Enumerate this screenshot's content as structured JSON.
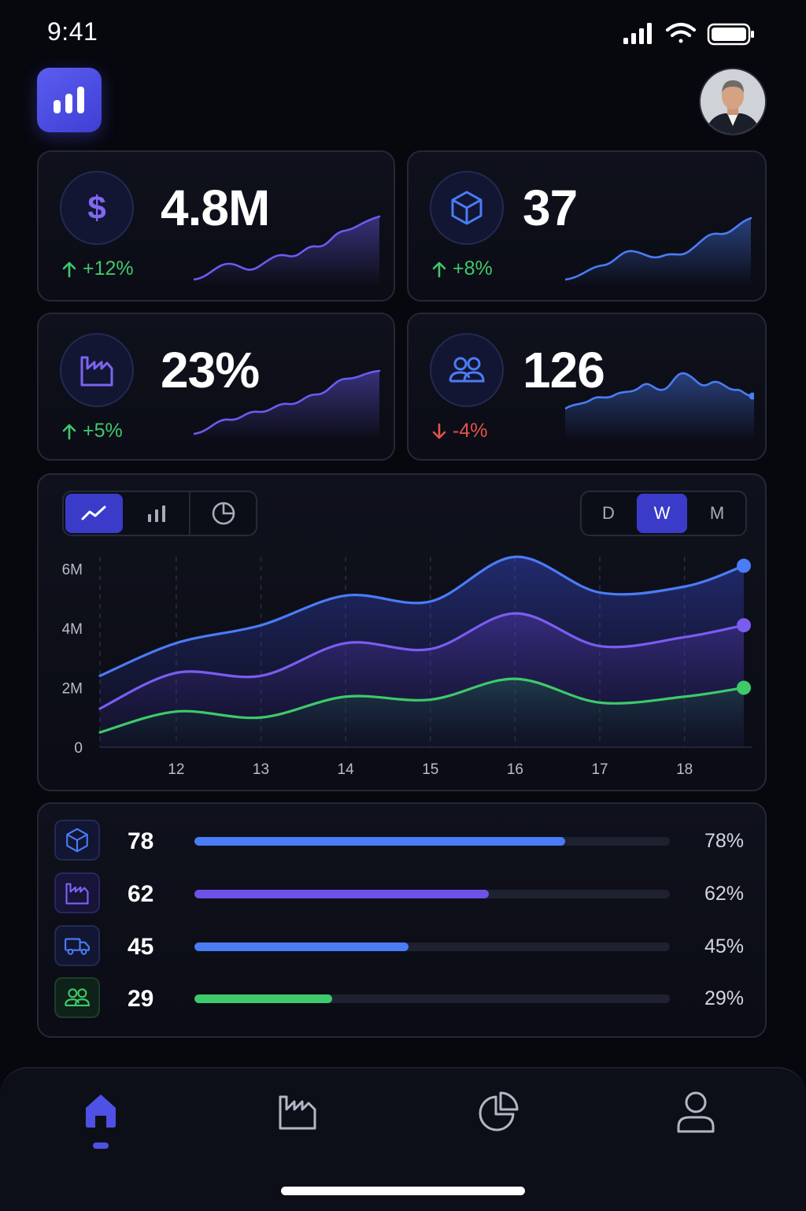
{
  "status_bar": {
    "time": "9:41"
  },
  "kpis": [
    {
      "icon": "dollar-icon",
      "value": "4.8M",
      "delta": "+12%",
      "trend": "up"
    },
    {
      "icon": "box-icon",
      "value": "37",
      "delta": "+8%",
      "trend": "up"
    },
    {
      "icon": "factory-icon",
      "value": "23%",
      "delta": "+5%",
      "trend": "up"
    },
    {
      "icon": "users-icon",
      "value": "126",
      "delta": "-4%",
      "trend": "down"
    }
  ],
  "chart_controls": {
    "chart_types": [
      "line-chart-icon",
      "bar-chart-icon",
      "pie-chart-icon"
    ],
    "active_chart_type": "line-chart-icon",
    "periods": [
      "D",
      "W",
      "M"
    ],
    "active_period": "W"
  },
  "chart_data": {
    "type": "area",
    "x": [
      11.1,
      12,
      13,
      14,
      15,
      16,
      17,
      18,
      18.7
    ],
    "x_ticks": [
      "12",
      "13",
      "14",
      "15",
      "16",
      "17",
      "18"
    ],
    "y_ticks": [
      "0",
      "2M",
      "4M",
      "6M"
    ],
    "ylim": [
      0,
      6.3
    ],
    "grid": "vertical dashed",
    "series": [
      {
        "color": "#4a7cf5",
        "values": [
          2.4,
          3.5,
          4.1,
          5.1,
          4.9,
          6.4,
          5.2,
          5.4,
          6.1
        ]
      },
      {
        "color": "#7b5cf0",
        "values": [
          1.3,
          2.5,
          2.4,
          3.5,
          3.3,
          4.5,
          3.4,
          3.7,
          4.1
        ]
      },
      {
        "color": "#3ec96b",
        "values": [
          0.5,
          1.2,
          1.0,
          1.7,
          1.6,
          2.3,
          1.5,
          1.7,
          2.0
        ]
      }
    ]
  },
  "progress": [
    {
      "icon": "box-icon",
      "count": "78",
      "percent_label": "78%",
      "value": 0.78,
      "color": "#4a7cf5"
    },
    {
      "icon": "factory-icon",
      "count": "62",
      "percent_label": "62%",
      "value": 0.62,
      "color": "#6e52e8"
    },
    {
      "icon": "truck-icon",
      "count": "45",
      "percent_label": "45%",
      "value": 0.45,
      "color": "#4a7cf5"
    },
    {
      "icon": "users-icon",
      "count": "29",
      "percent_label": "29%",
      "value": 0.29,
      "color": "#3ec96b"
    }
  ],
  "tab_bar": {
    "items": [
      "home-icon",
      "factory-icon",
      "pie-chart-icon",
      "profile-icon"
    ],
    "active": "home-icon"
  },
  "colors": {
    "accent": "#4f50e6",
    "up": "#3ec96b",
    "down": "#e2534a"
  }
}
